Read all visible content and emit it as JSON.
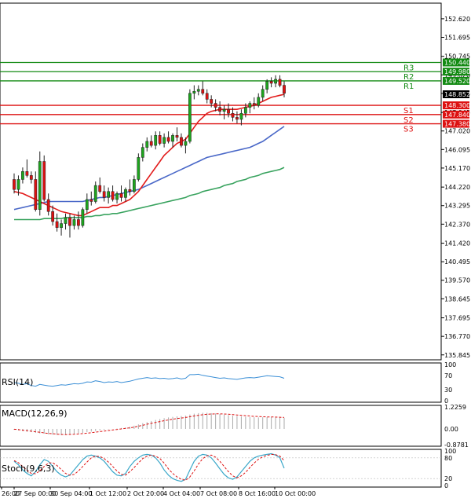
{
  "chart_data": {
    "type": "candlestick",
    "title": "",
    "colors": {
      "bull": "#1ea51e",
      "bear": "#dd1111",
      "ma_fast": "#e21b1b",
      "ma_mid": "#4a68c8",
      "ma_slow": "#39a35f",
      "resistance": "#138a13",
      "support": "#dd1111",
      "rsi": "#3b8fd6",
      "macd_bar": "#aaaaaa",
      "macd_signal": "#dd1111",
      "stoch_main": "#3aa7c9",
      "stoch_signal": "#dd1111",
      "price_label_bg": "#000000",
      "price_label_fg": "#ffffff",
      "grid_border": "#000000"
    },
    "price_axis": {
      "min": 135.6,
      "max": 153.4,
      "ticks": [
        "152.620",
        "151.695",
        "150.745",
        "149.820",
        "148.895",
        "147.945",
        "147.020",
        "146.095",
        "145.170",
        "144.220",
        "143.295",
        "142.370",
        "141.420",
        "140.495",
        "139.570",
        "138.645",
        "137.695",
        "136.770",
        "135.845"
      ],
      "current_price": "148.852"
    },
    "levels": [
      {
        "name": "R3",
        "value": 150.44,
        "label": "150.440",
        "kind": "resistance"
      },
      {
        "name": "R2",
        "value": 149.98,
        "label": "149.980",
        "kind": "resistance"
      },
      {
        "name": "R1",
        "value": 149.52,
        "label": "149.520",
        "kind": "resistance"
      },
      {
        "name": "S1",
        "value": 148.3,
        "label": "148.300",
        "kind": "support"
      },
      {
        "name": "S2",
        "value": 147.84,
        "label": "147.840",
        "kind": "support"
      },
      {
        "name": "S3",
        "value": 147.38,
        "label": "147.380",
        "kind": "support"
      }
    ],
    "x_axis_labels": [
      "26:00",
      "27 Sep 00:00",
      "30 Sep 04:00",
      "1 Oct 12:00",
      "2 Oct 20:00",
      "4 Oct 04:00",
      "7 Oct 08:00",
      "8 Oct 16:00",
      "10 Oct 00:00"
    ],
    "candles": [
      [
        144.6,
        144.9,
        143.9,
        144.1
      ],
      [
        144.1,
        144.8,
        143.8,
        144.6
      ],
      [
        144.6,
        145.2,
        144.4,
        145.0
      ],
      [
        145.0,
        145.6,
        144.7,
        144.8
      ],
      [
        144.8,
        145.0,
        144.4,
        144.6
      ],
      [
        144.6,
        145.0,
        143.0,
        143.1
      ],
      [
        143.1,
        146.0,
        142.8,
        145.5
      ],
      [
        145.5,
        145.8,
        143.5,
        143.6
      ],
      [
        143.6,
        143.9,
        142.8,
        143.0
      ],
      [
        143.0,
        143.3,
        142.3,
        142.5
      ],
      [
        142.5,
        142.9,
        142.0,
        142.2
      ],
      [
        142.2,
        142.6,
        141.8,
        142.4
      ],
      [
        142.4,
        142.9,
        142.1,
        142.7
      ],
      [
        142.7,
        142.9,
        141.7,
        142.3
      ],
      [
        142.3,
        142.8,
        142.1,
        142.6
      ],
      [
        142.6,
        143.0,
        142.1,
        142.3
      ],
      [
        142.3,
        143.2,
        142.2,
        143.1
      ],
      [
        143.1,
        143.9,
        142.9,
        143.6
      ],
      [
        143.6,
        144.0,
        143.3,
        143.5
      ],
      [
        143.5,
        144.5,
        143.4,
        144.3
      ],
      [
        144.3,
        144.7,
        143.9,
        144.0
      ],
      [
        144.0,
        144.3,
        143.5,
        143.7
      ],
      [
        143.7,
        144.2,
        143.4,
        144.0
      ],
      [
        144.0,
        144.3,
        143.5,
        143.6
      ],
      [
        143.6,
        144.0,
        143.4,
        143.9
      ],
      [
        143.9,
        144.3,
        143.5,
        143.7
      ],
      [
        143.7,
        144.2,
        143.5,
        144.1
      ],
      [
        144.1,
        144.6,
        143.8,
        144.0
      ],
      [
        144.0,
        144.8,
        143.9,
        144.6
      ],
      [
        144.6,
        145.9,
        144.5,
        145.7
      ],
      [
        145.7,
        146.4,
        145.5,
        146.2
      ],
      [
        146.2,
        146.7,
        146.0,
        146.5
      ],
      [
        146.5,
        146.8,
        146.2,
        146.3
      ],
      [
        146.3,
        147.0,
        146.1,
        146.8
      ],
      [
        146.8,
        147.0,
        146.3,
        146.4
      ],
      [
        146.4,
        146.9,
        146.2,
        146.7
      ],
      [
        146.7,
        147.0,
        146.4,
        146.5
      ],
      [
        146.5,
        146.9,
        146.2,
        146.8
      ],
      [
        146.8,
        147.2,
        146.5,
        146.7
      ],
      [
        146.7,
        146.9,
        146.2,
        146.3
      ],
      [
        146.3,
        146.7,
        145.9,
        146.5
      ],
      [
        146.5,
        149.1,
        146.4,
        148.9
      ],
      [
        148.9,
        149.3,
        148.6,
        149.0
      ],
      [
        149.0,
        149.3,
        148.8,
        149.1
      ],
      [
        149.1,
        149.5,
        148.8,
        148.9
      ],
      [
        148.9,
        149.1,
        148.4,
        148.6
      ],
      [
        148.6,
        148.8,
        148.2,
        148.4
      ],
      [
        148.4,
        148.6,
        148.0,
        148.2
      ],
      [
        148.2,
        148.5,
        147.8,
        148.0
      ],
      [
        148.0,
        148.3,
        147.6,
        148.1
      ],
      [
        148.1,
        148.4,
        147.7,
        147.9
      ],
      [
        147.9,
        148.2,
        147.5,
        147.7
      ],
      [
        147.7,
        148.0,
        147.4,
        147.6
      ],
      [
        147.6,
        148.1,
        147.3,
        147.9
      ],
      [
        147.9,
        148.4,
        147.7,
        148.2
      ],
      [
        148.2,
        148.5,
        147.9,
        148.4
      ],
      [
        148.4,
        148.7,
        148.1,
        148.3
      ],
      [
        148.3,
        148.9,
        148.2,
        148.7
      ],
      [
        148.7,
        149.3,
        148.5,
        149.1
      ],
      [
        149.1,
        149.6,
        148.9,
        149.5
      ],
      [
        149.5,
        149.7,
        149.2,
        149.4
      ],
      [
        149.4,
        149.8,
        149.2,
        149.6
      ],
      [
        149.6,
        149.8,
        149.2,
        149.3
      ],
      [
        149.3,
        149.5,
        148.7,
        148.9
      ]
    ],
    "ma_fast": [
      144.0,
      143.95,
      143.9,
      143.8,
      143.7,
      143.6,
      143.5,
      143.4,
      143.3,
      143.2,
      143.1,
      143.0,
      142.95,
      142.9,
      142.85,
      142.8,
      142.8,
      142.9,
      143.0,
      143.1,
      143.2,
      143.2,
      143.2,
      143.3,
      143.3,
      143.4,
      143.5,
      143.6,
      143.8,
      144.0,
      144.3,
      144.6,
      144.9,
      145.2,
      145.5,
      145.8,
      146.0,
      146.2,
      146.4,
      146.5,
      146.6,
      146.9,
      147.2,
      147.5,
      147.7,
      147.9,
      148.0,
      148.05,
      148.1,
      148.1,
      148.1,
      148.1,
      148.1,
      148.15,
      148.2,
      148.25,
      148.3,
      148.4,
      148.5,
      148.6,
      148.7,
      148.75,
      148.8,
      148.85
    ],
    "ma_mid": [
      143.1,
      143.15,
      143.2,
      143.25,
      143.3,
      143.35,
      143.4,
      143.45,
      143.5,
      143.5,
      143.5,
      143.5,
      143.5,
      143.5,
      143.5,
      143.5,
      143.5,
      143.55,
      143.6,
      143.65,
      143.7,
      143.7,
      143.75,
      143.8,
      143.85,
      143.9,
      143.95,
      144.0,
      144.05,
      144.1,
      144.2,
      144.3,
      144.4,
      144.5,
      144.6,
      144.7,
      144.8,
      144.9,
      145.0,
      145.1,
      145.2,
      145.3,
      145.4,
      145.5,
      145.6,
      145.7,
      145.75,
      145.8,
      145.85,
      145.9,
      145.95,
      146.0,
      146.05,
      146.1,
      146.15,
      146.2,
      146.3,
      146.4,
      146.5,
      146.65,
      146.8,
      146.95,
      147.1,
      147.25
    ],
    "ma_slow": [
      142.6,
      142.6,
      142.6,
      142.6,
      142.6,
      142.6,
      142.6,
      142.65,
      142.65,
      142.65,
      142.65,
      142.65,
      142.7,
      142.7,
      142.7,
      142.7,
      142.7,
      142.75,
      142.75,
      142.8,
      142.8,
      142.85,
      142.85,
      142.9,
      142.9,
      142.95,
      143.0,
      143.05,
      143.1,
      143.15,
      143.2,
      143.25,
      143.3,
      143.35,
      143.4,
      143.45,
      143.5,
      143.55,
      143.6,
      143.65,
      143.7,
      143.8,
      143.85,
      143.9,
      144.0,
      144.05,
      144.1,
      144.15,
      144.2,
      144.3,
      144.35,
      144.4,
      144.5,
      144.55,
      144.6,
      144.7,
      144.75,
      144.8,
      144.9,
      144.95,
      145.0,
      145.05,
      145.1,
      145.2
    ],
    "rsi": {
      "label": "RSI(14)",
      "axis": [
        "100",
        "70",
        "30",
        "0"
      ],
      "range": [
        0,
        100
      ],
      "values": [
        50,
        48,
        45,
        47,
        42,
        40,
        45,
        43,
        41,
        40,
        42,
        44,
        43,
        45,
        47,
        46,
        48,
        52,
        51,
        55,
        53,
        50,
        52,
        51,
        53,
        50,
        52,
        54,
        57,
        60,
        62,
        64,
        62,
        63,
        61,
        62,
        60,
        61,
        63,
        60,
        62,
        72,
        72,
        73,
        70,
        68,
        66,
        64,
        62,
        63,
        61,
        60,
        59,
        61,
        63,
        64,
        63,
        65,
        67,
        69,
        68,
        67,
        66,
        62
      ]
    },
    "macd": {
      "label": "MACD(12,26,9)",
      "axis": [
        "1.2259",
        "0.00",
        "-0.8781"
      ],
      "range": [
        -0.8781,
        1.2259
      ],
      "histogram": [
        -0.05,
        -0.08,
        -0.12,
        -0.15,
        -0.18,
        -0.22,
        -0.25,
        -0.27,
        -0.3,
        -0.32,
        -0.34,
        -0.35,
        -0.33,
        -0.3,
        -0.28,
        -0.25,
        -0.22,
        -0.18,
        -0.15,
        -0.12,
        -0.08,
        -0.05,
        -0.02,
        0.0,
        0.02,
        0.05,
        0.08,
        0.12,
        0.18,
        0.25,
        0.32,
        0.38,
        0.44,
        0.5,
        0.55,
        0.6,
        0.64,
        0.67,
        0.7,
        0.72,
        0.74,
        0.8,
        0.85,
        0.88,
        0.9,
        0.9,
        0.88,
        0.86,
        0.83,
        0.8,
        0.77,
        0.74,
        0.72,
        0.7,
        0.68,
        0.66,
        0.65,
        0.64,
        0.65,
        0.66,
        0.66,
        0.65,
        0.64,
        0.62
      ],
      "signal": [
        -0.02,
        -0.04,
        -0.07,
        -0.1,
        -0.13,
        -0.16,
        -0.19,
        -0.22,
        -0.25,
        -0.27,
        -0.29,
        -0.31,
        -0.32,
        -0.31,
        -0.3,
        -0.28,
        -0.26,
        -0.24,
        -0.21,
        -0.18,
        -0.15,
        -0.12,
        -0.09,
        -0.06,
        -0.03,
        0.0,
        0.03,
        0.06,
        0.1,
        0.15,
        0.2,
        0.26,
        0.31,
        0.36,
        0.41,
        0.46,
        0.5,
        0.54,
        0.58,
        0.61,
        0.64,
        0.68,
        0.72,
        0.76,
        0.79,
        0.82,
        0.83,
        0.84,
        0.84,
        0.83,
        0.82,
        0.8,
        0.78,
        0.76,
        0.74,
        0.72,
        0.7,
        0.69,
        0.68,
        0.67,
        0.67,
        0.66,
        0.65,
        0.64
      ]
    },
    "stoch": {
      "label": "Stoch(9,6,3)",
      "axis": [
        "100",
        "80",
        "20",
        "0"
      ],
      "range": [
        0,
        100
      ],
      "main": [
        70,
        60,
        45,
        35,
        28,
        40,
        60,
        75,
        70,
        55,
        40,
        30,
        25,
        30,
        45,
        60,
        75,
        85,
        88,
        85,
        80,
        70,
        55,
        40,
        30,
        28,
        35,
        55,
        70,
        80,
        88,
        90,
        88,
        80,
        65,
        45,
        30,
        20,
        15,
        12,
        18,
        45,
        70,
        85,
        90,
        88,
        80,
        65,
        48,
        32,
        22,
        18,
        25,
        40,
        55,
        70,
        80,
        85,
        88,
        90,
        92,
        88,
        80,
        50
      ],
      "signal": [
        72,
        66,
        55,
        45,
        35,
        34,
        42,
        55,
        65,
        66,
        58,
        46,
        35,
        30,
        32,
        42,
        55,
        68,
        80,
        85,
        84,
        78,
        68,
        55,
        42,
        32,
        30,
        40,
        52,
        65,
        78,
        85,
        88,
        85,
        78,
        65,
        48,
        35,
        25,
        18,
        15,
        25,
        42,
        62,
        78,
        86,
        88,
        82,
        70,
        55,
        40,
        28,
        22,
        28,
        38,
        52,
        65,
        76,
        83,
        87,
        90,
        89,
        85,
        72
      ]
    }
  }
}
